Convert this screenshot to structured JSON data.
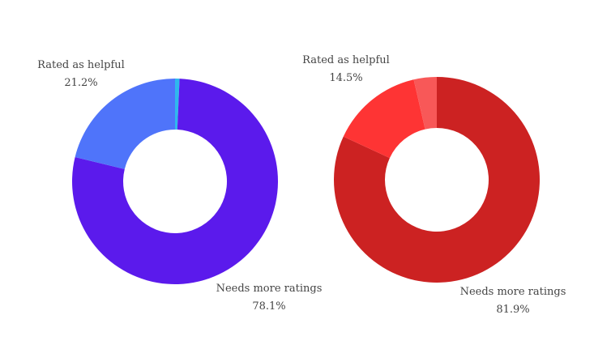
{
  "chart_data": [
    {
      "type": "pie",
      "donut": true,
      "slices": [
        {
          "label": "",
          "value": 0.7,
          "color": "#2fb8ee"
        },
        {
          "label": "Needs more ratings",
          "value": 78.1,
          "display": "78.1%",
          "color": "#5b1aec"
        },
        {
          "label": "Rated as helpful",
          "value": 21.2,
          "display": "21.2%",
          "color": "#4f74fa"
        }
      ]
    },
    {
      "type": "pie",
      "donut": true,
      "slices": [
        {
          "label": "Needs more ratings",
          "value": 81.9,
          "display": "81.9%",
          "color": "#cc2222"
        },
        {
          "label": "Rated as helpful",
          "value": 14.5,
          "display": "14.5%",
          "color": "#fe3434"
        },
        {
          "label": "",
          "value": 3.6,
          "color": "#f85858"
        }
      ]
    }
  ]
}
